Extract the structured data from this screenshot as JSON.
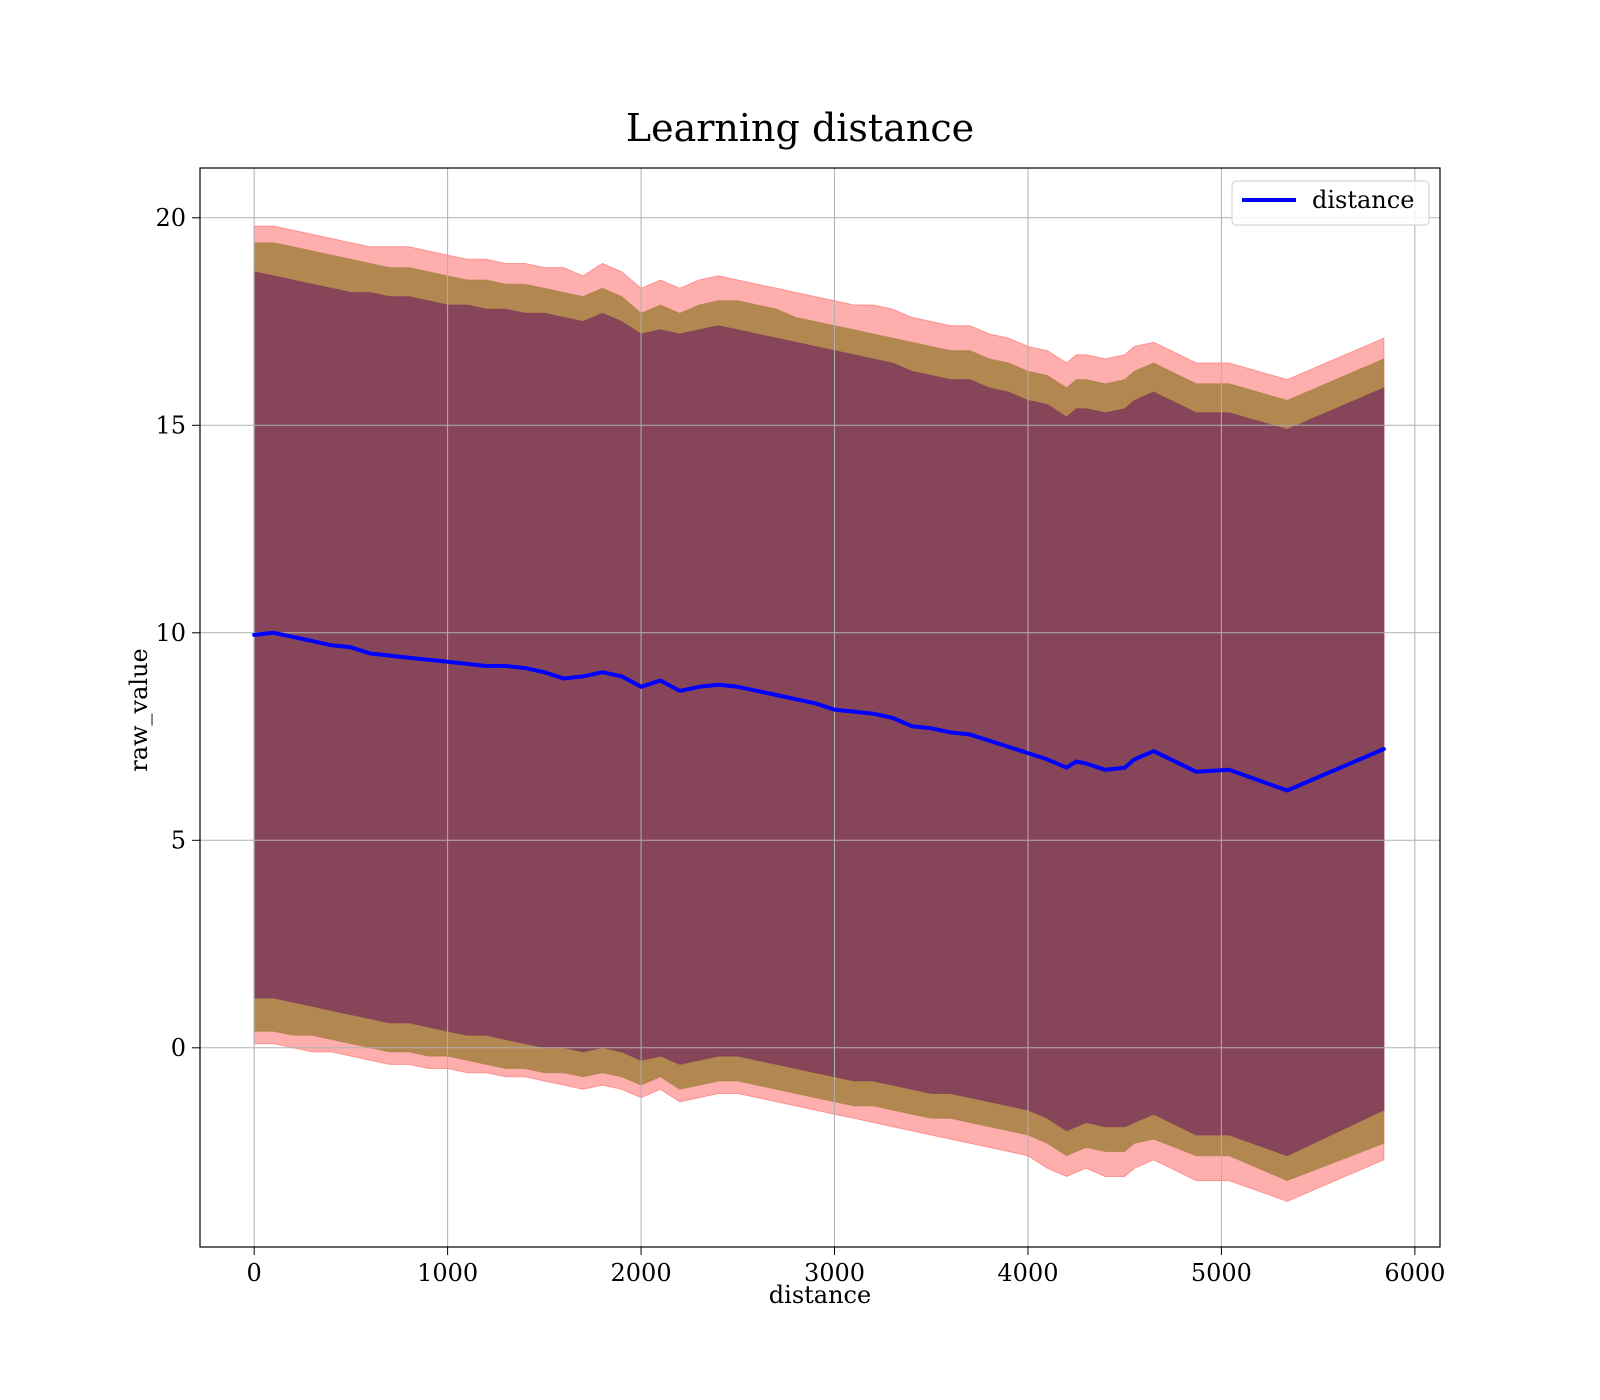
{
  "chart_data": {
    "type": "area",
    "title": "Learning distance",
    "xlabel": "distance",
    "ylabel": "raw_value",
    "xlim": [
      -280,
      6130
    ],
    "ylim": [
      -4.8,
      21.2
    ],
    "xticks": [
      0,
      1000,
      2000,
      3000,
      4000,
      5000,
      6000
    ],
    "yticks": [
      0,
      5,
      10,
      15,
      20
    ],
    "grid": true,
    "legend": {
      "position": "top-right",
      "entries": [
        "distance"
      ]
    },
    "colors": {
      "line": "#0000ff",
      "band_outer": "#ff6b6b",
      "band_middle": "#a5803f",
      "band_inner": "#7f3a5a"
    },
    "x": [
      0,
      100,
      200,
      300,
      400,
      500,
      600,
      700,
      800,
      900,
      1000,
      1100,
      1200,
      1300,
      1400,
      1500,
      1600,
      1700,
      1800,
      1900,
      2000,
      2100,
      2200,
      2300,
      2400,
      2500,
      2600,
      2700,
      2800,
      2900,
      3000,
      3100,
      3200,
      3300,
      3400,
      3500,
      3600,
      3700,
      3800,
      3900,
      4000,
      4100,
      4200,
      4250,
      4300,
      4400,
      4500,
      4550,
      4650,
      4870,
      5040,
      5340,
      5840
    ],
    "series": [
      {
        "name": "distance",
        "values": [
          9.95,
          10.0,
          9.9,
          9.8,
          9.7,
          9.65,
          9.5,
          9.45,
          9.4,
          9.35,
          9.3,
          9.25,
          9.2,
          9.2,
          9.15,
          9.05,
          8.9,
          8.95,
          9.05,
          8.95,
          8.7,
          8.85,
          8.6,
          8.7,
          8.75,
          8.7,
          8.6,
          8.5,
          8.4,
          8.3,
          8.15,
          8.1,
          8.05,
          7.95,
          7.75,
          7.7,
          7.6,
          7.55,
          7.4,
          7.25,
          7.1,
          6.95,
          6.75,
          6.9,
          6.85,
          6.7,
          6.75,
          6.95,
          7.15,
          6.65,
          6.7,
          6.2,
          7.2
        ]
      }
    ],
    "bands": [
      {
        "upper": [
          19.8,
          19.8,
          19.7,
          19.6,
          19.5,
          19.4,
          19.3,
          19.3,
          19.3,
          19.2,
          19.1,
          19.0,
          19.0,
          18.9,
          18.9,
          18.8,
          18.8,
          18.6,
          18.9,
          18.7,
          18.3,
          18.5,
          18.3,
          18.5,
          18.6,
          18.5,
          18.4,
          18.3,
          18.2,
          18.1,
          18.0,
          17.9,
          17.9,
          17.8,
          17.6,
          17.5,
          17.4,
          17.4,
          17.2,
          17.1,
          16.9,
          16.8,
          16.5,
          16.7,
          16.7,
          16.6,
          16.7,
          16.9,
          17.0,
          16.5,
          16.5,
          16.1,
          17.1
        ],
        "lower": [
          0.1,
          0.1,
          0.0,
          -0.1,
          -0.1,
          -0.2,
          -0.3,
          -0.4,
          -0.4,
          -0.5,
          -0.5,
          -0.6,
          -0.6,
          -0.7,
          -0.7,
          -0.8,
          -0.9,
          -1.0,
          -0.9,
          -1.0,
          -1.2,
          -1.0,
          -1.3,
          -1.2,
          -1.1,
          -1.1,
          -1.2,
          -1.3,
          -1.4,
          -1.5,
          -1.6,
          -1.7,
          -1.8,
          -1.9,
          -2.0,
          -2.1,
          -2.2,
          -2.3,
          -2.4,
          -2.5,
          -2.6,
          -2.9,
          -3.1,
          -3.0,
          -2.9,
          -3.1,
          -3.1,
          -2.9,
          -2.7,
          -3.2,
          -3.2,
          -3.7,
          -2.7
        ]
      },
      {
        "upper": [
          19.4,
          19.4,
          19.3,
          19.2,
          19.1,
          19.0,
          18.9,
          18.8,
          18.8,
          18.7,
          18.6,
          18.5,
          18.5,
          18.4,
          18.4,
          18.3,
          18.2,
          18.1,
          18.3,
          18.1,
          17.7,
          17.9,
          17.7,
          17.9,
          18.0,
          18.0,
          17.9,
          17.8,
          17.6,
          17.5,
          17.4,
          17.3,
          17.2,
          17.1,
          17.0,
          16.9,
          16.8,
          16.8,
          16.6,
          16.5,
          16.3,
          16.2,
          15.9,
          16.1,
          16.1,
          16.0,
          16.1,
          16.3,
          16.5,
          16.0,
          16.0,
          15.6,
          16.6
        ],
        "lower": [
          0.4,
          0.4,
          0.3,
          0.3,
          0.2,
          0.1,
          0.0,
          -0.1,
          -0.1,
          -0.2,
          -0.2,
          -0.3,
          -0.4,
          -0.5,
          -0.5,
          -0.6,
          -0.6,
          -0.7,
          -0.6,
          -0.7,
          -0.9,
          -0.7,
          -1.0,
          -0.9,
          -0.8,
          -0.8,
          -0.9,
          -1.0,
          -1.1,
          -1.2,
          -1.3,
          -1.4,
          -1.4,
          -1.5,
          -1.6,
          -1.7,
          -1.7,
          -1.8,
          -1.9,
          -2.0,
          -2.1,
          -2.3,
          -2.6,
          -2.5,
          -2.4,
          -2.5,
          -2.5,
          -2.3,
          -2.2,
          -2.6,
          -2.6,
          -3.2,
          -2.3
        ]
      },
      {
        "upper": [
          18.7,
          18.6,
          18.5,
          18.4,
          18.3,
          18.2,
          18.2,
          18.1,
          18.1,
          18.0,
          17.9,
          17.9,
          17.8,
          17.8,
          17.7,
          17.7,
          17.6,
          17.5,
          17.7,
          17.5,
          17.2,
          17.3,
          17.2,
          17.3,
          17.4,
          17.3,
          17.2,
          17.1,
          17.0,
          16.9,
          16.8,
          16.7,
          16.6,
          16.5,
          16.3,
          16.2,
          16.1,
          16.1,
          15.9,
          15.8,
          15.6,
          15.5,
          15.2,
          15.4,
          15.4,
          15.3,
          15.4,
          15.6,
          15.8,
          15.3,
          15.3,
          14.9,
          15.9
        ],
        "lower": [
          1.2,
          1.2,
          1.1,
          1.0,
          0.9,
          0.8,
          0.7,
          0.6,
          0.6,
          0.5,
          0.4,
          0.3,
          0.3,
          0.2,
          0.1,
          0.0,
          0.0,
          -0.1,
          0.0,
          -0.1,
          -0.3,
          -0.2,
          -0.4,
          -0.3,
          -0.2,
          -0.2,
          -0.3,
          -0.4,
          -0.5,
          -0.6,
          -0.7,
          -0.8,
          -0.8,
          -0.9,
          -1.0,
          -1.1,
          -1.1,
          -1.2,
          -1.3,
          -1.4,
          -1.5,
          -1.7,
          -2.0,
          -1.9,
          -1.8,
          -1.9,
          -1.9,
          -1.8,
          -1.6,
          -2.1,
          -2.1,
          -2.6,
          -1.5
        ]
      }
    ]
  }
}
